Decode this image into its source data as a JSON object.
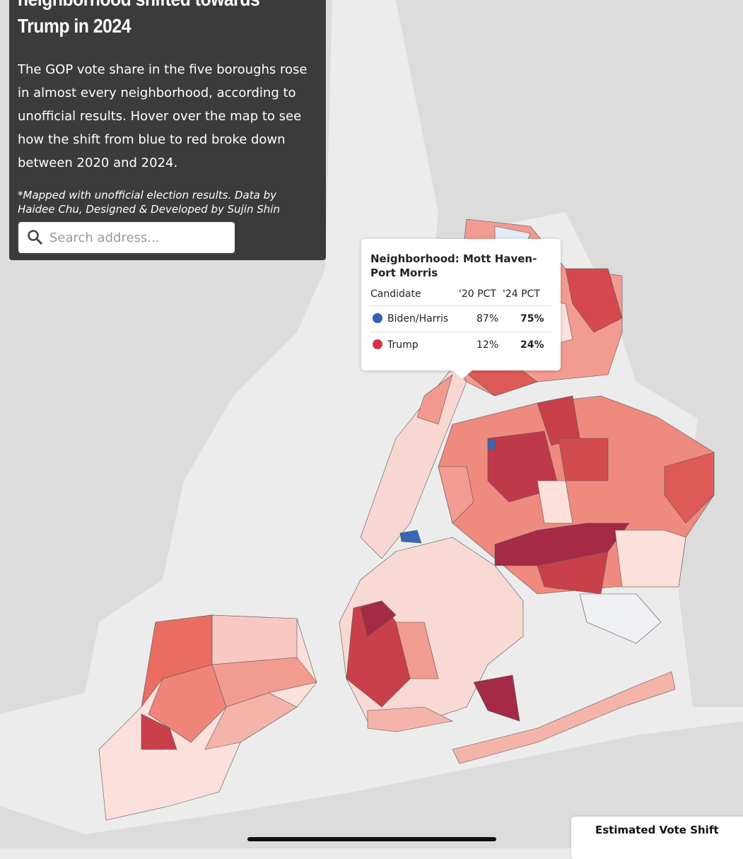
{
  "panel": {
    "title": "neighborhood shifted towards Trump in 2024",
    "description": "The GOP vote share in the five boroughs rose in almost every neighborhood, according to unofficial results. Hover over the map to see how the shift from blue to red broke down between 2020 and 2024.",
    "credit": "*Mapped with unofficial election results. Data by Haidee Chu, Designed & Developed by Sujin Shin",
    "search_placeholder": "Search address..."
  },
  "tooltip": {
    "neighborhood_label": "Neighborhood: Mott Haven-Port Morris",
    "columns": [
      "Candidate",
      "'20 PCT",
      "'24 PCT"
    ],
    "rows": [
      [
        "Biden/Harris",
        "87%",
        "75%"
      ],
      [
        "Trump",
        "12%",
        "24%"
      ]
    ]
  },
  "legend": {
    "title": "Estimated Vote Shift"
  }
}
